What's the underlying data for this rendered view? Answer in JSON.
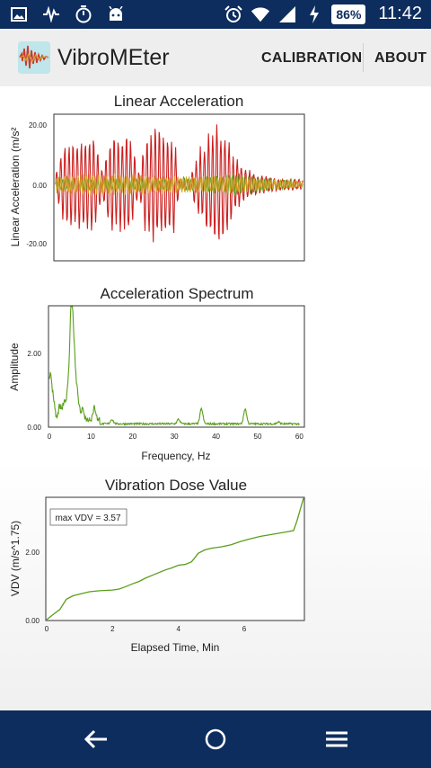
{
  "status_bar": {
    "icons_left": [
      "image-icon",
      "activity-icon",
      "timer-icon",
      "android-icon"
    ],
    "icons_right": [
      "alarm-icon",
      "wifi-icon",
      "signal-icon",
      "charging-icon"
    ],
    "battery": "86%",
    "time": "11:42"
  },
  "app_bar": {
    "title": "VibroMEter",
    "menu": [
      "CALIBRATION",
      "ABOUT"
    ]
  },
  "colors": {
    "status_bar": "#0d2d5e",
    "app_bar": "#eeeeee",
    "red_series": "#cc1f1f",
    "green_series": "#5a9e1a",
    "orange_series": "#d8a12a"
  },
  "chart_data": [
    {
      "type": "line",
      "title": "Linear Acceleration",
      "ylabel": "Linear Acceleration (m/s²",
      "xlabel": "",
      "y_ticks": [
        "20.00",
        "0.00",
        "-20.00"
      ],
      "ylim": [
        -25,
        23
      ],
      "grid": false,
      "series": [
        {
          "color": "#cc1f1f",
          "envelope": [
            [
              0.0,
              4
            ],
            [
              0.03,
              13
            ],
            [
              0.05,
              15
            ],
            [
              0.09,
              16
            ],
            [
              0.15,
              18
            ],
            [
              0.19,
              5
            ],
            [
              0.21,
              14
            ],
            [
              0.24,
              17
            ],
            [
              0.3,
              18
            ],
            [
              0.34,
              3
            ],
            [
              0.36,
              16
            ],
            [
              0.4,
              20
            ],
            [
              0.48,
              17
            ],
            [
              0.5,
              2
            ],
            [
              0.52,
              3
            ],
            [
              0.54,
              1
            ],
            [
              0.58,
              12
            ],
            [
              0.61,
              16
            ],
            [
              0.65,
              21
            ],
            [
              0.69,
              19
            ],
            [
              0.72,
              10
            ],
            [
              0.8,
              4
            ],
            [
              0.9,
              2
            ],
            [
              1.0,
              2
            ]
          ]
        },
        {
          "color": "#5a9e1a",
          "envelope": [
            [
              0.0,
              2
            ],
            [
              0.5,
              2
            ],
            [
              0.64,
              3
            ],
            [
              0.72,
              4
            ],
            [
              0.8,
              3
            ],
            [
              0.9,
              2
            ],
            [
              1.0,
              1
            ]
          ]
        },
        {
          "color": "#d8a12a",
          "envelope": [
            [
              0.0,
              3
            ],
            [
              0.15,
              4
            ],
            [
              0.5,
              3
            ],
            [
              0.7,
              3
            ],
            [
              0.85,
              2
            ],
            [
              1.0,
              1
            ]
          ]
        }
      ]
    },
    {
      "type": "line",
      "title": "Acceleration Spectrum",
      "ylabel": "Amplitude",
      "xlabel": "Frequency, Hz",
      "x_ticks": [
        0,
        10,
        20,
        30,
        40,
        50,
        60
      ],
      "y_ticks": [
        "2.00",
        "0.00"
      ],
      "xlim": [
        0,
        61
      ],
      "ylim": [
        0,
        3.2
      ],
      "grid": false,
      "series": [
        {
          "color": "#5a9e1a",
          "peaks": [
            [
              0.2,
              1.2
            ],
            [
              1.0,
              0.5
            ],
            [
              2.5,
              0.35
            ],
            [
              3.5,
              0.45
            ],
            [
              4.5,
              0.9
            ],
            [
              5.3,
              3.15
            ],
            [
              6.0,
              1.5
            ],
            [
              6.8,
              0.6
            ],
            [
              8.0,
              0.25
            ],
            [
              10.8,
              0.32
            ],
            [
              15.0,
              0.12
            ],
            [
              31.0,
              0.12
            ],
            [
              36.5,
              0.4
            ],
            [
              47.0,
              0.4
            ],
            [
              55.0,
              0.05
            ]
          ]
        }
      ]
    },
    {
      "type": "line",
      "title": "Vibration Dose Value",
      "ylabel": "VDV (m/s^1.75)",
      "xlabel": "Elapsed Time, Min",
      "annotation": "max VDV = 3.57",
      "x_ticks": [
        0,
        2,
        4,
        6
      ],
      "y_ticks": [
        "2.00",
        "0.00"
      ],
      "xlim": [
        0,
        7.8
      ],
      "ylim": [
        0,
        3.57
      ],
      "grid": false,
      "series": [
        {
          "color": "#5a9e1a",
          "x": [
            0,
            0.2,
            0.4,
            0.5,
            0.6,
            0.8,
            1.0,
            1.3,
            1.6,
            2.0,
            2.2,
            2.4,
            2.6,
            2.8,
            3.0,
            3.2,
            3.4,
            3.6,
            3.8,
            4.0,
            4.2,
            4.4,
            4.5,
            4.6,
            4.8,
            5.0,
            5.3,
            5.6,
            5.9,
            6.2,
            6.5,
            6.8,
            7.1,
            7.3,
            7.5,
            7.6,
            7.8
          ],
          "y": [
            0.0,
            0.15,
            0.3,
            0.45,
            0.6,
            0.7,
            0.75,
            0.82,
            0.85,
            0.87,
            0.9,
            0.97,
            1.05,
            1.12,
            1.22,
            1.3,
            1.38,
            1.46,
            1.52,
            1.6,
            1.62,
            1.7,
            1.82,
            1.95,
            2.05,
            2.1,
            2.14,
            2.2,
            2.3,
            2.38,
            2.45,
            2.5,
            2.55,
            2.58,
            2.62,
            2.9,
            3.57
          ]
        }
      ]
    }
  ],
  "nav_bar": {
    "buttons": [
      "back-icon",
      "home-icon",
      "menu-icon"
    ]
  }
}
